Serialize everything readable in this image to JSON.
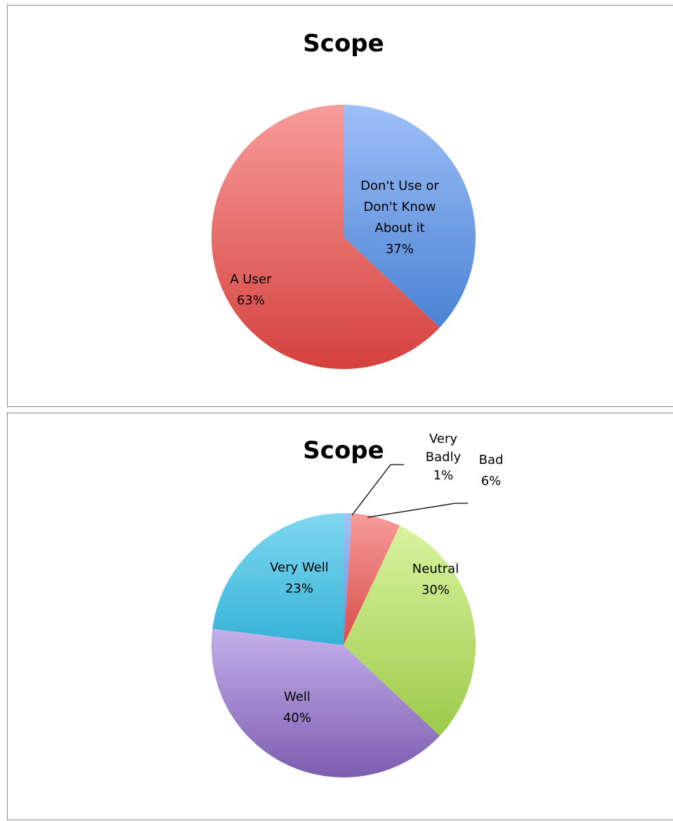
{
  "chart_data": [
    {
      "type": "pie",
      "title": "Scope",
      "slices": [
        {
          "label": [
            "Don't Use or",
            "Don't Know",
            "About it"
          ],
          "value": 37,
          "display": "37%",
          "color_light": "#9dbff7",
          "color_dark": "#4a82d4"
        },
        {
          "label": [
            "A User"
          ],
          "value": 63,
          "display": "63%",
          "color_light": "#f79c9a",
          "color_dark": "#d4413e"
        }
      ]
    },
    {
      "type": "pie",
      "title": "Scope",
      "slices": [
        {
          "label": [
            "Very",
            "Badly"
          ],
          "value": 1,
          "display": "1%",
          "color_light": "#a3c3f7",
          "color_dark": "#5d90e0"
        },
        {
          "label": [
            "Bad"
          ],
          "value": 6,
          "display": "6%",
          "color_light": "#f79c9a",
          "color_dark": "#d64d4a"
        },
        {
          "label": [
            "Neutral"
          ],
          "value": 30,
          "display": "30%",
          "color_light": "#d9f29f",
          "color_dark": "#9ccb4a"
        },
        {
          "label": [
            "Well"
          ],
          "value": 40,
          "display": "40%",
          "color_light": "#c4b0ea",
          "color_dark": "#7c5db0"
        },
        {
          "label": [
            "Very Well"
          ],
          "value": 23,
          "display": "23%",
          "color_light": "#7fd8ef",
          "color_dark": "#36b2d6"
        }
      ]
    }
  ]
}
